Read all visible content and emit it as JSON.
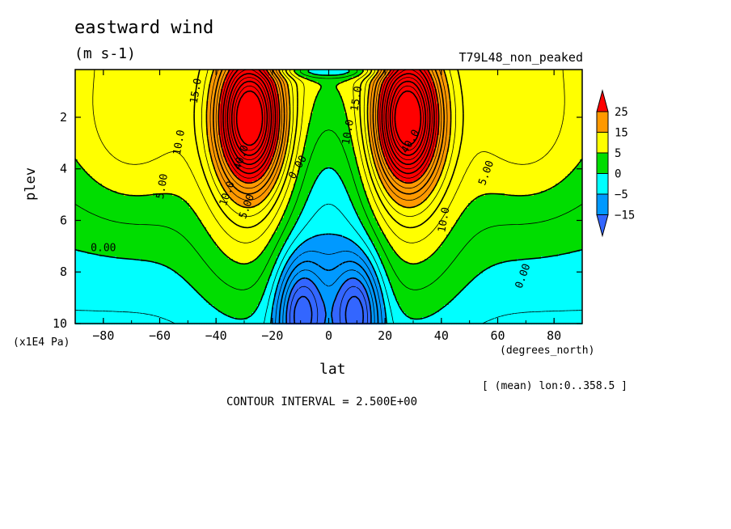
{
  "title": "eastward wind",
  "units": "(m s-1)",
  "case_name": "T79L48_non_peaked",
  "footer": {
    "mean_label": "[ (mean) lon:0..358.5 ]",
    "contour_interval": "CONTOUR INTERVAL = 2.500E+00"
  },
  "chart_data": {
    "type": "contour",
    "title": "eastward wind",
    "subtitle": "(m s-1)",
    "xlabel": "lat",
    "x_units": "(degrees_north)",
    "ylabel": "plev",
    "y_units": "(x1E4 Pa)",
    "xlim": [
      -90,
      90
    ],
    "ylim": [
      10,
      0
    ],
    "x_ticks": [
      -80,
      -60,
      -40,
      -20,
      0,
      20,
      40,
      60,
      80
    ],
    "y_ticks": [
      2,
      4,
      6,
      8,
      10
    ],
    "contour_interval": 2.5,
    "colorbar": {
      "levels": [
        25,
        15,
        5,
        0,
        -5,
        -15
      ],
      "colors": [
        "#ff0000",
        "#ff9900",
        "#ffff00",
        "#00dd00",
        "#00ffff",
        "#0099ff",
        "#3366ff"
      ]
    },
    "contour_labels": [
      "15.0",
      "10.0",
      "5.00",
      "0.00",
      "40.0",
      "10.0",
      "5.00",
      "0.00",
      "15.0",
      "10.0",
      "40.0",
      "10.0",
      "5.00",
      "0.00"
    ],
    "jets": [
      {
        "lat": -28,
        "plev": 2,
        "max": 40
      },
      {
        "lat": 28,
        "plev": 2,
        "max": 40
      }
    ],
    "easterlies": [
      {
        "lat": -8,
        "plev": 9.5,
        "min": -15
      },
      {
        "lat": 8,
        "plev": 9.5,
        "min": -15
      }
    ]
  }
}
